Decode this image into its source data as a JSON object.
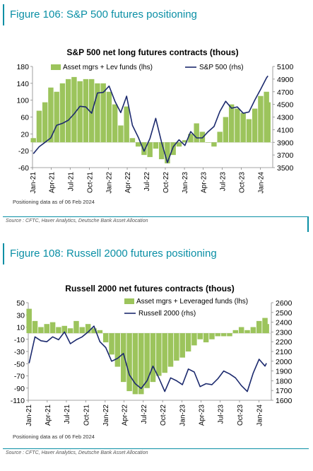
{
  "figures": [
    {
      "figure_title": "Figure 106: S&P 500 futures positioning",
      "source": "Source : CFTC, Haver Analytics, Deutsche Bank Asset Allocation",
      "note": "Positioning data as of 06 Feb 2024",
      "colors": {
        "bars": "#9cc45c",
        "line": "#1c2a6e",
        "accent": "#0a8fa5"
      }
    },
    {
      "figure_title": "Figure 108: Russell 2000 futures positioning",
      "source": "Source : CFTC, Haver Analytics, Deutsche Bank Asset Allocation",
      "note": "Positioning data as of 06 Feb 2024",
      "colors": {
        "bars": "#9cc45c",
        "line": "#1c2a6e",
        "accent": "#0a8fa5"
      }
    }
  ],
  "chart_data": [
    {
      "type": "bar+line",
      "title": "S&P 500 net long futures contracts  (thous)",
      "x_tick_labels": [
        "Jan-21",
        "Apr-21",
        "Jul-21",
        "Oct-21",
        "Jan-22",
        "Apr-22",
        "Jul-22",
        "Oct-22",
        "Jan-23",
        "Apr-23",
        "Jul-23",
        "Oct-23",
        "Jan-24"
      ],
      "y_left": {
        "range": [
          -60,
          180
        ],
        "ticks": [
          -60,
          -20,
          20,
          60,
          100,
          140,
          180
        ]
      },
      "y_right": {
        "range": [
          3500,
          5100
        ],
        "ticks": [
          3500,
          3700,
          3900,
          4100,
          4300,
          4500,
          4700,
          4900,
          5100
        ]
      },
      "series": [
        {
          "name": "Asset mgrs + Lev funds (lhs)",
          "kind": "bar",
          "axis": "left",
          "x": [
            "2021-01-05",
            "2021-02-02",
            "2021-03-02",
            "2021-03-30",
            "2021-04-27",
            "2021-05-25",
            "2021-06-22",
            "2021-07-20",
            "2021-08-17",
            "2021-09-14",
            "2021-10-12",
            "2021-11-09",
            "2021-12-07",
            "2022-01-04",
            "2022-02-01",
            "2022-03-01",
            "2022-03-29",
            "2022-04-26",
            "2022-05-24",
            "2022-06-21",
            "2022-07-19",
            "2022-08-16",
            "2022-09-13",
            "2022-10-11",
            "2022-11-08",
            "2022-12-06",
            "2023-01-03",
            "2023-01-31",
            "2023-02-28",
            "2023-03-28",
            "2023-04-25",
            "2023-05-23",
            "2023-06-20",
            "2023-07-18",
            "2023-08-15",
            "2023-09-12",
            "2023-10-10",
            "2023-11-07",
            "2023-12-05",
            "2024-01-02",
            "2024-01-30",
            "2024-02-06"
          ],
          "values": [
            10,
            75,
            95,
            130,
            120,
            140,
            150,
            155,
            145,
            150,
            150,
            140,
            140,
            120,
            90,
            40,
            85,
            10,
            -10,
            -30,
            -35,
            -15,
            -40,
            -50,
            -30,
            -10,
            5,
            20,
            45,
            25,
            0,
            -10,
            25,
            60,
            90,
            80,
            70,
            55,
            80,
            110,
            120,
            95
          ]
        },
        {
          "name": "S&P 500 (rhs)",
          "kind": "line",
          "axis": "right",
          "x": [
            "2021-01-05",
            "2021-02-02",
            "2021-03-02",
            "2021-03-30",
            "2021-04-27",
            "2021-05-25",
            "2021-06-22",
            "2021-07-20",
            "2021-08-17",
            "2021-09-14",
            "2021-10-12",
            "2021-11-09",
            "2021-12-07",
            "2022-01-04",
            "2022-02-01",
            "2022-03-01",
            "2022-03-29",
            "2022-04-26",
            "2022-05-24",
            "2022-06-21",
            "2022-07-19",
            "2022-08-16",
            "2022-09-13",
            "2022-10-11",
            "2022-11-08",
            "2022-12-06",
            "2023-01-03",
            "2023-01-31",
            "2023-02-28",
            "2023-03-28",
            "2023-04-25",
            "2023-05-23",
            "2023-06-20",
            "2023-07-18",
            "2023-08-15",
            "2023-09-12",
            "2023-10-10",
            "2023-11-07",
            "2023-12-05",
            "2024-01-02",
            "2024-01-30",
            "2024-02-06"
          ],
          "values": [
            3720,
            3830,
            3900,
            3970,
            4170,
            4200,
            4250,
            4350,
            4470,
            4460,
            4360,
            4680,
            4690,
            4790,
            4550,
            4370,
            4630,
            4170,
            3980,
            3760,
            3960,
            4280,
            3900,
            3580,
            3830,
            3940,
            3850,
            4070,
            3970,
            3970,
            4070,
            4150,
            4390,
            4550,
            4440,
            4460,
            4360,
            4380,
            4570,
            4740,
            4920,
            4950
          ]
        }
      ],
      "legend": "top"
    },
    {
      "type": "bar+line",
      "title": "Russell 2000 net futures contracts  (thous)",
      "x_tick_labels": [
        "Jan-21",
        "Apr-21",
        "Jul-21",
        "Oct-21",
        "Jan-22",
        "Apr-22",
        "Jul-22",
        "Oct-22",
        "Jan-23",
        "Apr-23",
        "Jul-23",
        "Oct-23",
        "Jan-24"
      ],
      "y_left": {
        "range": [
          -110,
          50
        ],
        "ticks": [
          -110,
          -90,
          -70,
          -50,
          -30,
          -10,
          10,
          30,
          50
        ]
      },
      "y_right": {
        "range": [
          1600,
          2600
        ],
        "ticks": [
          1600,
          1700,
          1800,
          1900,
          2000,
          2100,
          2200,
          2300,
          2400,
          2500,
          2600
        ]
      },
      "series": [
        {
          "name": "Asset mgrs + Leveraged funds (lhs)",
          "kind": "bar",
          "axis": "left",
          "x": [
            "2021-01-05",
            "2021-02-02",
            "2021-03-02",
            "2021-03-30",
            "2021-04-27",
            "2021-05-25",
            "2021-06-22",
            "2021-07-20",
            "2021-08-17",
            "2021-09-14",
            "2021-10-12",
            "2021-11-09",
            "2021-12-07",
            "2022-01-04",
            "2022-02-01",
            "2022-03-01",
            "2022-03-29",
            "2022-04-26",
            "2022-05-24",
            "2022-06-21",
            "2022-07-19",
            "2022-08-16",
            "2022-09-13",
            "2022-10-11",
            "2022-11-08",
            "2022-12-06",
            "2023-01-03",
            "2023-01-31",
            "2023-02-28",
            "2023-03-28",
            "2023-04-25",
            "2023-05-23",
            "2023-06-20",
            "2023-07-18",
            "2023-08-15",
            "2023-09-12",
            "2023-10-10",
            "2023-11-07",
            "2023-12-05",
            "2024-01-02",
            "2024-01-30",
            "2024-02-06"
          ],
          "values": [
            40,
            20,
            10,
            15,
            18,
            10,
            12,
            8,
            20,
            10,
            15,
            8,
            5,
            -15,
            -35,
            -55,
            -80,
            -95,
            -100,
            -100,
            -90,
            -80,
            -70,
            -65,
            -55,
            -45,
            -40,
            -30,
            -20,
            -10,
            -15,
            -10,
            -5,
            -5,
            -5,
            5,
            10,
            5,
            10,
            20,
            25,
            15
          ]
        },
        {
          "name": "Russell 2000 (rhs)",
          "kind": "line",
          "axis": "right",
          "x": [
            "2021-01-05",
            "2021-02-02",
            "2021-03-02",
            "2021-03-30",
            "2021-04-27",
            "2021-05-25",
            "2021-06-22",
            "2021-07-20",
            "2021-08-17",
            "2021-09-14",
            "2021-10-12",
            "2021-11-09",
            "2021-12-07",
            "2022-01-04",
            "2022-02-01",
            "2022-03-01",
            "2022-03-29",
            "2022-04-26",
            "2022-05-24",
            "2022-06-21",
            "2022-07-19",
            "2022-08-16",
            "2022-09-13",
            "2022-10-11",
            "2022-11-08",
            "2022-12-06",
            "2023-01-03",
            "2023-01-31",
            "2023-02-28",
            "2023-03-28",
            "2023-04-25",
            "2023-05-23",
            "2023-06-20",
            "2023-07-18",
            "2023-08-15",
            "2023-09-12",
            "2023-10-10",
            "2023-11-07",
            "2023-12-05",
            "2024-01-02",
            "2024-01-30",
            "2024-02-06"
          ],
          "values": [
            1980,
            2250,
            2210,
            2200,
            2250,
            2220,
            2300,
            2180,
            2220,
            2250,
            2300,
            2360,
            2200,
            2140,
            2000,
            2030,
            2080,
            1860,
            1770,
            1720,
            1800,
            1950,
            1830,
            1690,
            1830,
            1800,
            1760,
            1920,
            1890,
            1740,
            1770,
            1760,
            1820,
            1900,
            1870,
            1830,
            1750,
            1690,
            1880,
            2020,
            1950,
            1980
          ]
        }
      ],
      "legend": "top"
    }
  ]
}
